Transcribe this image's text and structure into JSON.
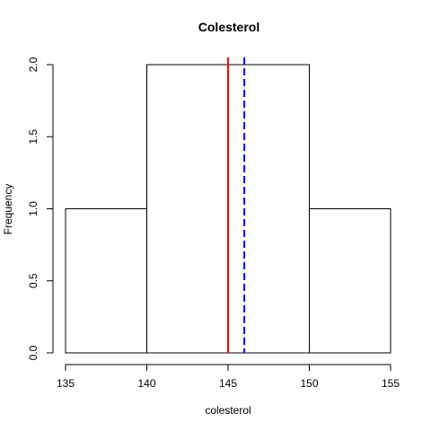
{
  "chart_data": {
    "type": "bar",
    "title": "Colesterol",
    "xlabel": "colesterol",
    "ylabel": "Frequency",
    "bins": [
      {
        "x0": 135,
        "x1": 140,
        "count": 1
      },
      {
        "x0": 140,
        "x1": 145,
        "count": 2
      },
      {
        "x0": 145,
        "x1": 150,
        "count": 2
      },
      {
        "x0": 150,
        "x1": 155,
        "count": 1
      }
    ],
    "xlim": [
      135,
      155
    ],
    "ylim": [
      0,
      2
    ],
    "xticks": [
      135,
      140,
      145,
      150,
      155
    ],
    "yticks": [
      0.0,
      0.5,
      1.0,
      1.5,
      2.0
    ],
    "ytick_labels": [
      "0.0",
      "0.5",
      "1.0",
      "1.5",
      "2.0"
    ],
    "reference_lines": [
      {
        "value": 145,
        "color": "#ff0000",
        "style": "solid"
      },
      {
        "value": 146,
        "color": "#0000ff",
        "style": "dashed"
      }
    ],
    "grid": false
  }
}
